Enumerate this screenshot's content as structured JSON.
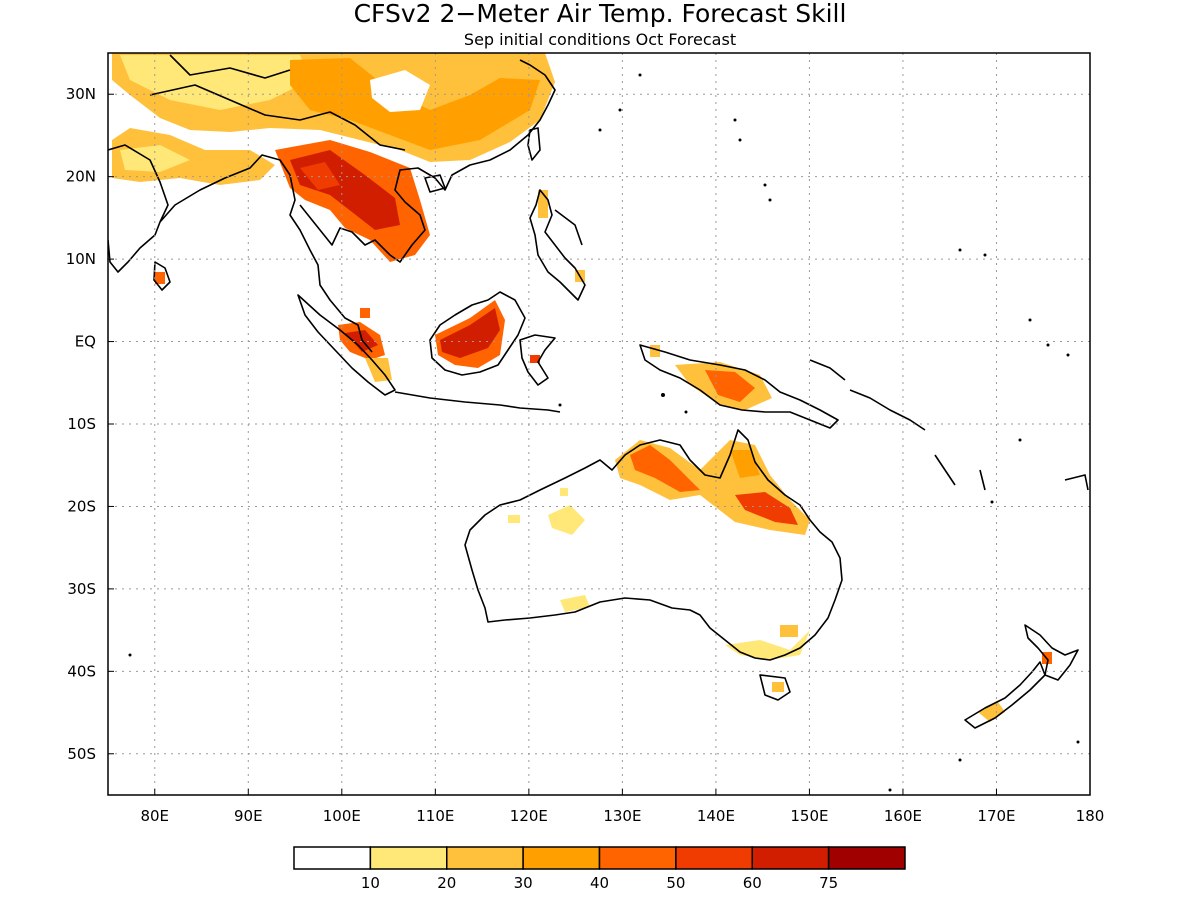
{
  "title": "CFSv2 2−Meter Air Temp. Forecast Skill",
  "subtitle": "Sep initial conditions  Oct Forecast",
  "map": {
    "lon_range": [
      75,
      180
    ],
    "lat_range": [
      -55,
      35
    ],
    "x_ticks": [
      "80E",
      "90E",
      "100E",
      "110E",
      "120E",
      "130E",
      "140E",
      "150E",
      "160E",
      "170E",
      "180"
    ],
    "y_ticks": [
      "30N",
      "20N",
      "10N",
      "EQ",
      "10S",
      "20S",
      "30S",
      "40S",
      "50S"
    ],
    "grid": true
  },
  "colorbar": {
    "labels": [
      "10",
      "20",
      "30",
      "40",
      "50",
      "60",
      "75"
    ],
    "colors": [
      "#ffffff",
      "#ffe878",
      "#ffc03c",
      "#ffa000",
      "#ff6400",
      "#f03c00",
      "#d21e00",
      "#a00000"
    ]
  }
}
